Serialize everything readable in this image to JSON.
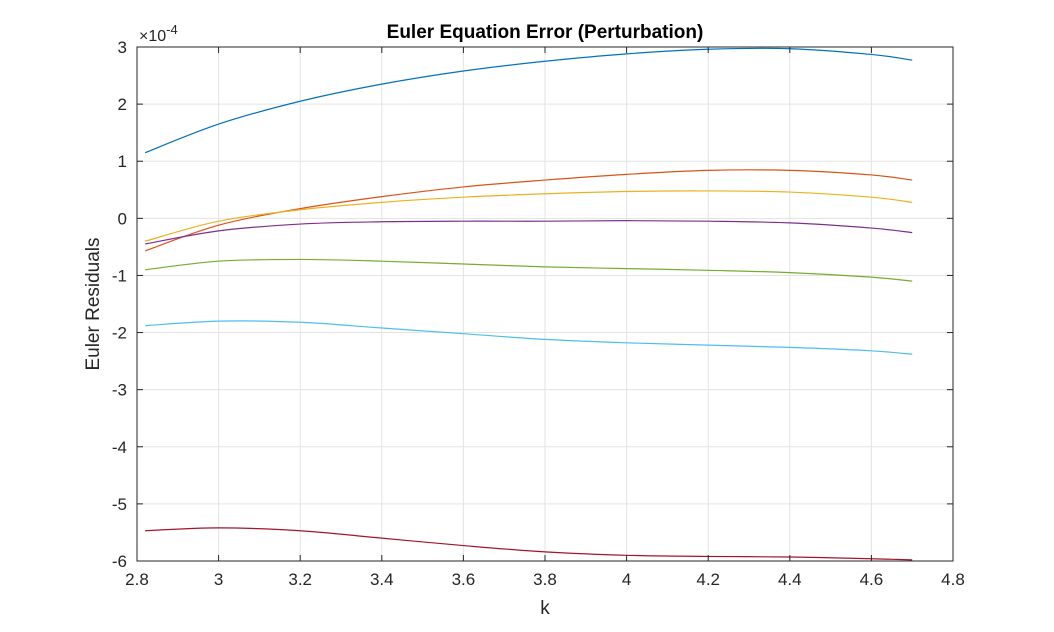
{
  "chart_data": {
    "type": "line",
    "title": "Euler Equation Error (Perturbation)",
    "xlabel": "k",
    "ylabel": "Euler Residuals",
    "y_exponent_prefix": "×10",
    "y_exponent_power": "-4",
    "xlim": [
      2.8,
      4.8
    ],
    "ylim": [
      -6,
      3
    ],
    "x_ticks": [
      "2.8",
      "3",
      "3.2",
      "3.4",
      "3.6",
      "3.8",
      "4",
      "4.2",
      "4.4",
      "4.6",
      "4.8"
    ],
    "y_ticks": [
      "3",
      "2",
      "1",
      "0",
      "-1",
      "-2",
      "-3",
      "-4",
      "-5",
      "-6"
    ],
    "grid": true,
    "x": [
      2.82,
      3.0,
      3.2,
      3.4,
      3.6,
      3.8,
      4.0,
      4.2,
      4.4,
      4.6,
      4.7
    ],
    "series": [
      {
        "color": "#0072BD",
        "values": [
          1.15,
          1.65,
          2.05,
          2.35,
          2.58,
          2.75,
          2.88,
          2.96,
          2.97,
          2.87,
          2.77
        ]
      },
      {
        "color": "#D95319",
        "values": [
          -0.57,
          -0.12,
          0.17,
          0.38,
          0.55,
          0.67,
          0.77,
          0.84,
          0.84,
          0.76,
          0.67
        ]
      },
      {
        "color": "#EDB120",
        "values": [
          -0.4,
          -0.05,
          0.15,
          0.28,
          0.37,
          0.43,
          0.47,
          0.48,
          0.46,
          0.37,
          0.28
        ]
      },
      {
        "color": "#7E2F8E",
        "values": [
          -0.45,
          -0.22,
          -0.1,
          -0.06,
          -0.05,
          -0.05,
          -0.04,
          -0.05,
          -0.08,
          -0.17,
          -0.25
        ]
      },
      {
        "color": "#77AC30",
        "values": [
          -0.9,
          -0.75,
          -0.72,
          -0.75,
          -0.8,
          -0.85,
          -0.88,
          -0.91,
          -0.95,
          -1.03,
          -1.1
        ]
      },
      {
        "color": "#4DBEEE",
        "values": [
          -1.88,
          -1.8,
          -1.82,
          -1.92,
          -2.02,
          -2.12,
          -2.18,
          -2.22,
          -2.26,
          -2.32,
          -2.38
        ]
      },
      {
        "color": "#A2142F",
        "values": [
          -5.47,
          -5.42,
          -5.47,
          -5.6,
          -5.73,
          -5.84,
          -5.9,
          -5.92,
          -5.93,
          -5.96,
          -5.98
        ]
      }
    ]
  }
}
